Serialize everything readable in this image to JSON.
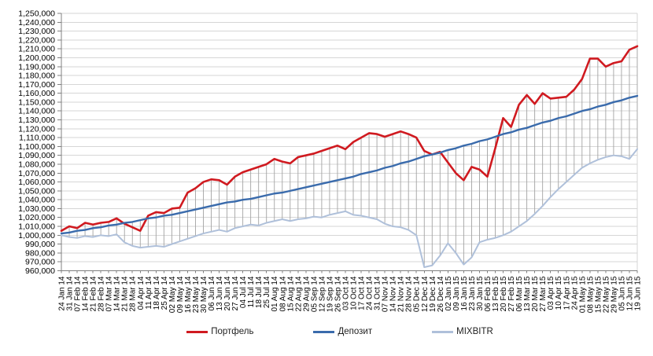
{
  "chart_data": {
    "type": "line",
    "title": "",
    "xlabel": "",
    "ylabel": "",
    "ylim": [
      960000,
      1250000
    ],
    "ytick_step": 10000,
    "y_tick_format": "#,##0",
    "grid": "horizontal",
    "high_low_lines": true,
    "legend_position": "bottom",
    "axis_color": "#808080",
    "gridline_color": "#d6d6d6",
    "high_low_color": "#a3a3a3",
    "categories": [
      "24 Jan 14",
      "31 Jan 14",
      "07 Feb 14",
      "14 Feb 14",
      "21 Feb 14",
      "28 Feb 14",
      "07 Mar 14",
      "14 Mar 14",
      "21 Mar 14",
      "28 Mar 14",
      "04 Apr 14",
      "11 Apr 14",
      "18 Apr 14",
      "25 Apr 14",
      "02 May 14",
      "09 May 14",
      "16 May 14",
      "23 May 14",
      "30 May 14",
      "06 Jun 14",
      "13 Jun 14",
      "20 Jun 14",
      "27 Jun 14",
      "04 Jul 14",
      "11 Jul 14",
      "18 Jul 14",
      "25 Jul 14",
      "01 Aug 14",
      "08 Aug 14",
      "15 Aug 14",
      "22 Aug 14",
      "29 Aug 14",
      "05 Sep 14",
      "12 Sep 14",
      "19 Sep 14",
      "26 Sep 14",
      "03 Oct 14",
      "10 Oct 14",
      "17 Oct 14",
      "24 Oct 14",
      "31 Oct 14",
      "07 Nov 14",
      "14 Nov 14",
      "21 Nov 14",
      "28 Nov 14",
      "05 Dec 14",
      "12 Dec 14",
      "19 Dec 14",
      "26 Dec 14",
      "02 Jan 15",
      "09 Jan 15",
      "16 Jan 15",
      "23 Jan 15",
      "30 Jan 15",
      "06 Feb 15",
      "13 Feb 15",
      "20 Feb 15",
      "27 Feb 15",
      "06 Mar 15",
      "13 Mar 15",
      "20 Mar 15",
      "27 Mar 15",
      "03 Apr 15",
      "10 Apr 15",
      "17 Apr 15",
      "24 Apr 15",
      "01 May 15",
      "08 May 15",
      "15 May 15",
      "22 May 15",
      "29 May 15",
      "05 Jun 15",
      "12 Jun 15",
      "19 Jun 15"
    ],
    "series": [
      {
        "name": "Портфель",
        "color": "#d01a20",
        "stroke_width": 2.6,
        "values": [
          1005000,
          1010000,
          1008000,
          1014000,
          1012000,
          1014000,
          1015000,
          1019000,
          1013000,
          1009000,
          1005000,
          1022000,
          1026000,
          1025000,
          1030000,
          1031000,
          1048000,
          1053000,
          1060000,
          1063000,
          1062000,
          1057000,
          1066000,
          1071000,
          1074000,
          1077000,
          1080000,
          1086000,
          1083000,
          1081000,
          1088000,
          1090000,
          1092000,
          1095000,
          1098000,
          1101000,
          1097000,
          1105000,
          1110000,
          1115000,
          1114000,
          1111000,
          1114000,
          1117000,
          1114000,
          1110000,
          1095000,
          1091000,
          1094000,
          1082000,
          1070000,
          1062000,
          1077000,
          1074000,
          1066000,
          1098000,
          1132000,
          1122000,
          1147000,
          1158000,
          1148000,
          1160000,
          1154000,
          1155000,
          1156000,
          1164000,
          1176000,
          1199000,
          1199000,
          1190000,
          1194000,
          1196000,
          1209000,
          1213000
        ]
      },
      {
        "name": "Депозит",
        "color": "#3a6bac",
        "stroke_width": 2.4,
        "values": [
          1002000,
          1003000,
          1005000,
          1006000,
          1008000,
          1009000,
          1011000,
          1012000,
          1014000,
          1015000,
          1017000,
          1019000,
          1020000,
          1022000,
          1023000,
          1025000,
          1027000,
          1029000,
          1031000,
          1033000,
          1035000,
          1037000,
          1038000,
          1040000,
          1041000,
          1043000,
          1045000,
          1047000,
          1048000,
          1050000,
          1052000,
          1054000,
          1056000,
          1058000,
          1060000,
          1062000,
          1064000,
          1066000,
          1069000,
          1071000,
          1073000,
          1076000,
          1078000,
          1081000,
          1083000,
          1086000,
          1089000,
          1091000,
          1093000,
          1096000,
          1098000,
          1101000,
          1103000,
          1106000,
          1108000,
          1111000,
          1114000,
          1116000,
          1119000,
          1121000,
          1124000,
          1127000,
          1129000,
          1132000,
          1134000,
          1137000,
          1140000,
          1142000,
          1145000,
          1147000,
          1150000,
          1152000,
          1155000,
          1157000
        ]
      },
      {
        "name": "MIXBITR",
        "color": "#afc0da",
        "stroke_width": 2.0,
        "values": [
          1000000,
          998000,
          997000,
          999000,
          998000,
          1000000,
          999000,
          1001000,
          992000,
          988000,
          986000,
          987000,
          988000,
          987000,
          990000,
          993000,
          996000,
          999000,
          1002000,
          1004000,
          1006000,
          1004000,
          1008000,
          1010000,
          1012000,
          1011000,
          1014000,
          1016000,
          1018000,
          1016000,
          1018000,
          1019000,
          1021000,
          1020000,
          1023000,
          1025000,
          1027000,
          1023000,
          1022000,
          1020000,
          1018000,
          1013000,
          1010000,
          1009000,
          1006000,
          1000000,
          964000,
          966000,
          977000,
          991000,
          980000,
          967000,
          975000,
          992000,
          995000,
          997000,
          1000000,
          1004000,
          1010000,
          1016000,
          1024000,
          1033000,
          1043000,
          1052000,
          1060000,
          1068000,
          1076000,
          1081000,
          1085000,
          1088000,
          1090000,
          1089000,
          1086000,
          1097000
        ]
      }
    ]
  },
  "legend": {
    "items": [
      "Портфель",
      "Депозит",
      "MIXBITR"
    ]
  }
}
